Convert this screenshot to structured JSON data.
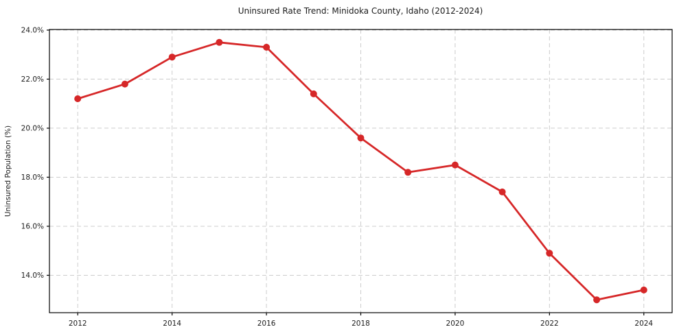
{
  "chart_data": {
    "type": "line",
    "title": "Uninsured Rate Trend: Minidoka County, Idaho (2012-2024)",
    "xlabel": "",
    "ylabel": "Uninsured Population (%)",
    "x": [
      2012,
      2013,
      2014,
      2015,
      2016,
      2017,
      2018,
      2019,
      2020,
      2021,
      2022,
      2023,
      2024
    ],
    "values": [
      21.2,
      21.8,
      22.9,
      23.5,
      23.3,
      21.4,
      19.6,
      18.2,
      18.5,
      17.4,
      14.9,
      13.0,
      13.4
    ],
    "xlim": [
      2011.4,
      2024.6
    ],
    "ylim": [
      12.475,
      24.025
    ],
    "x_ticks": [
      2012,
      2014,
      2016,
      2018,
      2020,
      2022,
      2024
    ],
    "x_tick_labels": [
      "2012",
      "2014",
      "2016",
      "2018",
      "2020",
      "2022",
      "2024"
    ],
    "y_ticks": [
      14,
      16,
      18,
      20,
      22,
      24
    ],
    "y_tick_labels": [
      "14.0%",
      "16.0%",
      "18.0%",
      "20.0%",
      "22.0%",
      "24.0%"
    ],
    "grid": true,
    "grid_style": "dashed",
    "legend": false,
    "line_color": "#d62728",
    "marker_color": "#d62728",
    "grid_color": "#cccccc",
    "spine_color": "#000000",
    "text_color": "#1a1a1a",
    "background_color": "#ffffff"
  }
}
